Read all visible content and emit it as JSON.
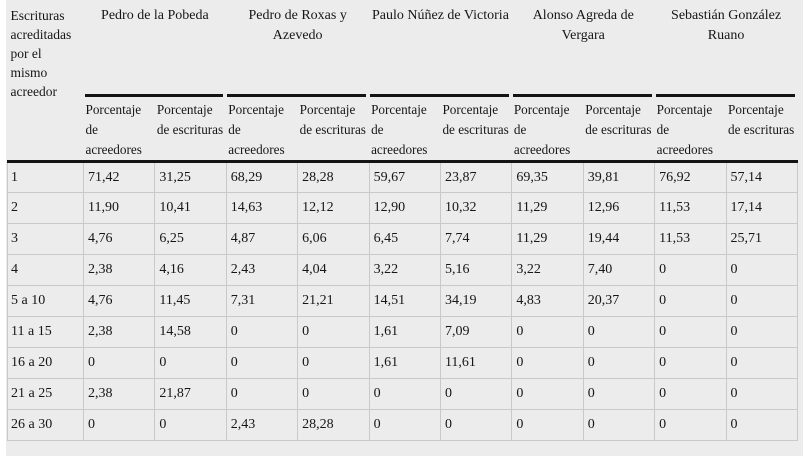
{
  "style": {
    "page_bg": "#ececec",
    "rule_color": "#141414",
    "grid_color": "#c9c9c9",
    "text_color": "#161616"
  },
  "chart_data": {
    "type": "table",
    "corner_header": "Escrituras acreditadas por el mismo acreedor",
    "column_groups": [
      "Pedro de la Pobeda",
      "Pedro de Roxas y Azevedo",
      "Paulo Núñez de Victoria",
      "Alonso Agreda de Vergara",
      "Sebastián González Ruano"
    ],
    "subcolumns_per_group": [
      "Porcentaje de acreedores",
      "Porcentaje de escrituras"
    ],
    "rows": [
      {
        "label": "1",
        "values": [
          "71,42",
          "31,25",
          "68,29",
          "28,28",
          "59,67",
          "23,87",
          "69,35",
          "39,81",
          "76,92",
          "57,14"
        ]
      },
      {
        "label": "2",
        "values": [
          "11,90",
          "10,41",
          "14,63",
          "12,12",
          "12,90",
          "10,32",
          "11,29",
          "12,96",
          "11,53",
          "17,14"
        ]
      },
      {
        "label": "3",
        "values": [
          "4,76",
          "6,25",
          "4,87",
          "6,06",
          "6,45",
          "7,74",
          "11,29",
          "19,44",
          "11,53",
          "25,71"
        ]
      },
      {
        "label": "4",
        "values": [
          "2,38",
          "4,16",
          "2,43",
          "4,04",
          "3,22",
          "5,16",
          "3,22",
          "7,40",
          "0",
          "0"
        ]
      },
      {
        "label": "5 a 10",
        "values": [
          "4,76",
          "11,45",
          "7,31",
          "21,21",
          "14,51",
          "34,19",
          "4,83",
          "20,37",
          "0",
          "0"
        ]
      },
      {
        "label": "11 a 15",
        "values": [
          "2,38",
          "14,58",
          "0",
          "0",
          "1,61",
          "7,09",
          "0",
          "0",
          "0",
          "0"
        ]
      },
      {
        "label": "16 a 20",
        "values": [
          "0",
          "0",
          "0",
          "0",
          "1,61",
          "11,61",
          "0",
          "0",
          "0",
          "0"
        ]
      },
      {
        "label": "21 a 25",
        "values": [
          "2,38",
          "21,87",
          "0",
          "0",
          "0",
          "0",
          "0",
          "0",
          "0",
          "0"
        ]
      },
      {
        "label": "26 a 30",
        "values": [
          "0",
          "0",
          "2,43",
          "28,28",
          "0",
          "0",
          "0",
          "0",
          "0",
          "0"
        ]
      }
    ]
  }
}
